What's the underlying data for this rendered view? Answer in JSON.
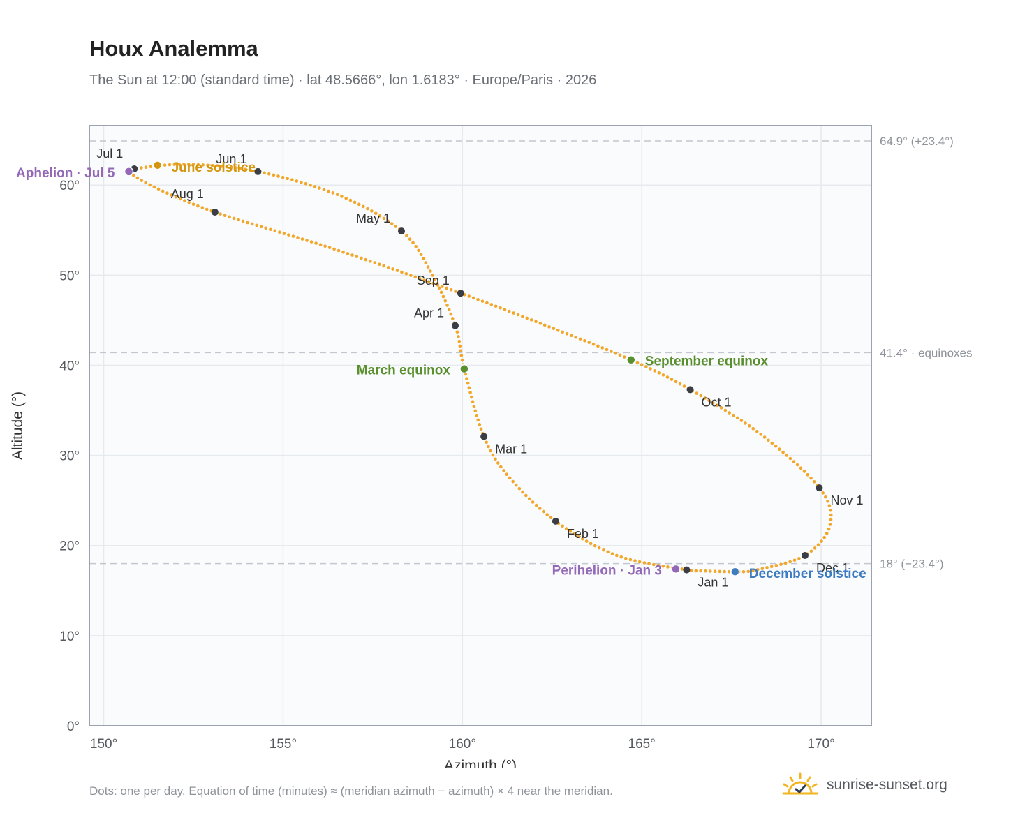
{
  "title": "Houx Analemma",
  "subtitle": "The Sun at 12:00 (standard time) · lat 48.5666°, lon 1.6183° · Europe/Paris · 2026",
  "footnote": "Dots: one per day. Equation of time (minutes) ≈ (meridian azimuth − azimuth) × 4 near the meridian.",
  "brand": "sunrise-sunset.org",
  "colors": {
    "path": "#f2a72a",
    "month_marker": "#3a3d44",
    "equinox": "#5a8f2e",
    "june_solstice": "#d4960f",
    "december_solstice": "#3e7cc2",
    "apsis": "#9368b7",
    "grid": "#e6e9ee",
    "plot_bg": "#f9fbfd",
    "frame": "#9aa3af",
    "reference_line": "#c3c8cf"
  },
  "chart_data": {
    "type": "scatter",
    "xlabel": "Azimuth (°)",
    "ylabel": "Altitude (°)",
    "xlim": [
      149.6,
      171.4
    ],
    "ylim": [
      0,
      66.6
    ],
    "x_ticks": [
      150,
      155,
      160,
      165,
      170
    ],
    "x_tick_labels": [
      "150°",
      "155°",
      "160°",
      "165°",
      "170°"
    ],
    "y_ticks": [
      0,
      10,
      20,
      30,
      40,
      50,
      60
    ],
    "y_tick_labels": [
      "0°",
      "10°",
      "20°",
      "30°",
      "40°",
      "50°",
      "60°"
    ],
    "grid": true,
    "reference_lines": [
      {
        "y": 64.9,
        "label": "64.9° (+23.4°)"
      },
      {
        "y": 41.4,
        "label": "41.4° · equinoxes"
      },
      {
        "y": 18.0,
        "label": "18° (−23.4°)"
      }
    ],
    "month_markers": [
      {
        "label": "Jan 1",
        "az": 166.25,
        "alt": 17.3
      },
      {
        "label": "Feb 1",
        "az": 162.6,
        "alt": 22.7
      },
      {
        "label": "Mar 1",
        "az": 160.6,
        "alt": 32.1
      },
      {
        "label": "Apr 1",
        "az": 159.8,
        "alt": 44.4
      },
      {
        "label": "May 1",
        "az": 158.3,
        "alt": 54.9
      },
      {
        "label": "Jun 1",
        "az": 154.3,
        "alt": 61.5
      },
      {
        "label": "Jul 1",
        "az": 150.85,
        "alt": 61.8
      },
      {
        "label": "Aug 1",
        "az": 153.1,
        "alt": 57.0
      },
      {
        "label": "Sep 1",
        "az": 159.95,
        "alt": 48.0
      },
      {
        "label": "Oct 1",
        "az": 166.35,
        "alt": 37.3
      },
      {
        "label": "Nov 1",
        "az": 169.95,
        "alt": 26.4
      },
      {
        "label": "Dec 1",
        "az": 169.55,
        "alt": 18.9
      }
    ],
    "events": [
      {
        "label": "March equinox",
        "az": 160.05,
        "alt": 39.6,
        "kind": "equinox"
      },
      {
        "label": "June solstice",
        "az": 151.5,
        "alt": 62.2,
        "kind": "june_solstice"
      },
      {
        "label": "September equinox",
        "az": 164.7,
        "alt": 40.6,
        "kind": "equinox"
      },
      {
        "label": "December solstice",
        "az": 167.6,
        "alt": 17.1,
        "kind": "december_solstice"
      },
      {
        "label": "Perihelion · Jan 3",
        "az": 165.95,
        "alt": 17.4,
        "kind": "apsis"
      },
      {
        "label": "Aphelion · Jul 5",
        "az": 150.7,
        "alt": 61.5,
        "kind": "apsis"
      }
    ],
    "path_knots": [
      {
        "az": 166.25,
        "alt": 17.3
      },
      {
        "az": 164.3,
        "alt": 18.9
      },
      {
        "az": 162.6,
        "alt": 22.7
      },
      {
        "az": 161.3,
        "alt": 27.6
      },
      {
        "az": 160.6,
        "alt": 32.1
      },
      {
        "az": 160.05,
        "alt": 39.6
      },
      {
        "az": 159.8,
        "alt": 44.4
      },
      {
        "az": 159.1,
        "alt": 50.5
      },
      {
        "az": 158.3,
        "alt": 54.9
      },
      {
        "az": 156.6,
        "alt": 58.8
      },
      {
        "az": 154.3,
        "alt": 61.5
      },
      {
        "az": 152.3,
        "alt": 62.3
      },
      {
        "az": 150.85,
        "alt": 61.8
      },
      {
        "az": 150.7,
        "alt": 61.5
      },
      {
        "az": 151.4,
        "alt": 59.8
      },
      {
        "az": 153.1,
        "alt": 57.0
      },
      {
        "az": 156.5,
        "alt": 52.8
      },
      {
        "az": 159.95,
        "alt": 48.0
      },
      {
        "az": 162.4,
        "alt": 44.3
      },
      {
        "az": 164.7,
        "alt": 40.6
      },
      {
        "az": 166.35,
        "alt": 37.3
      },
      {
        "az": 168.3,
        "alt": 32.4
      },
      {
        "az": 169.95,
        "alt": 26.4
      },
      {
        "az": 170.25,
        "alt": 22.3
      },
      {
        "az": 169.55,
        "alt": 18.9
      },
      {
        "az": 168.2,
        "alt": 17.3
      },
      {
        "az": 167.6,
        "alt": 17.1
      },
      {
        "az": 166.6,
        "alt": 17.2
      },
      {
        "az": 166.25,
        "alt": 17.3
      }
    ]
  }
}
